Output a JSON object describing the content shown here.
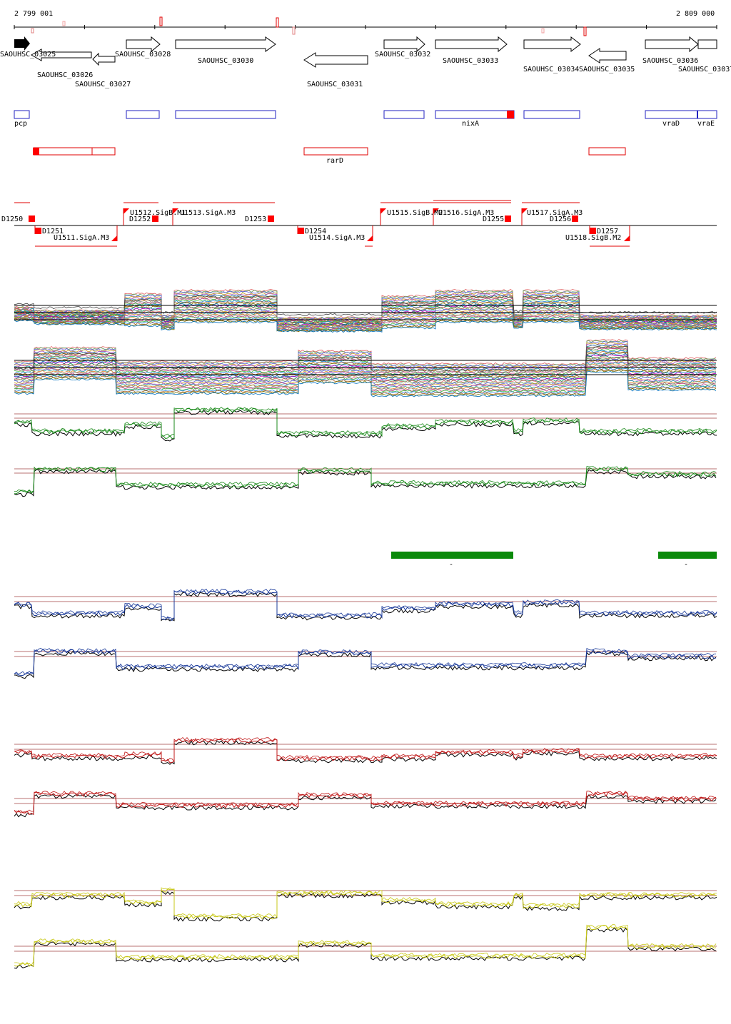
{
  "coords": {
    "start": "2 799 001",
    "end": "2 809 000",
    "start_bp": 2799001,
    "end_bp": 2809000
  },
  "colors": {
    "cds": "#000000",
    "blue_track": "#2020c0",
    "red_track": "#e00000",
    "threshold": "#a04040",
    "green_pair": "#1a8a1a",
    "blue_pair": "#1a3a9a",
    "red_pair": "#c01818",
    "yellow_pair": "#c8c818",
    "green_bar": "#0a8a0a"
  },
  "genes": [
    {
      "name": "SAOUHSC_03025",
      "strand": "+",
      "filled": true
    },
    {
      "name": "SAOUHSC_03026",
      "strand": "-"
    },
    {
      "name": "SAOUHSC_03027",
      "strand": "-"
    },
    {
      "name": "SAOUHSC_03028",
      "strand": "+"
    },
    {
      "name": "SAOUHSC_03030",
      "strand": "+"
    },
    {
      "name": "SAOUHSC_03031",
      "strand": "-"
    },
    {
      "name": "SAOUHSC_03032",
      "strand": "+"
    },
    {
      "name": "SAOUHSC_03033",
      "strand": "+"
    },
    {
      "name": "SAOUHSC_03034",
      "strand": "+"
    },
    {
      "name": "SAOUHSC_03035",
      "strand": "-"
    },
    {
      "name": "SAOUHSC_03036",
      "strand": "+"
    },
    {
      "name": "SAOUHSC_03037",
      "strand": "+"
    }
  ],
  "blue_features": [
    "pcp",
    "nixA",
    "vraD",
    "vraE"
  ],
  "red_features": [
    "rarD"
  ],
  "upper_segments": [
    "D1250",
    "U1512.SigB.M1",
    "D1252",
    "U1513.SigA.M3",
    "D1253",
    "U1515.SigB.M2",
    "U1516.SigA.M3",
    "D1255",
    "U1517.SigA.M3",
    "D1256"
  ],
  "lower_segments": [
    "D1251",
    "U1511.SigA.M3",
    "D1254",
    "U1514.SigA.M3",
    "D1257",
    "U1518.SigB.M2"
  ],
  "green_bar_labels": [
    "-",
    "-"
  ]
}
